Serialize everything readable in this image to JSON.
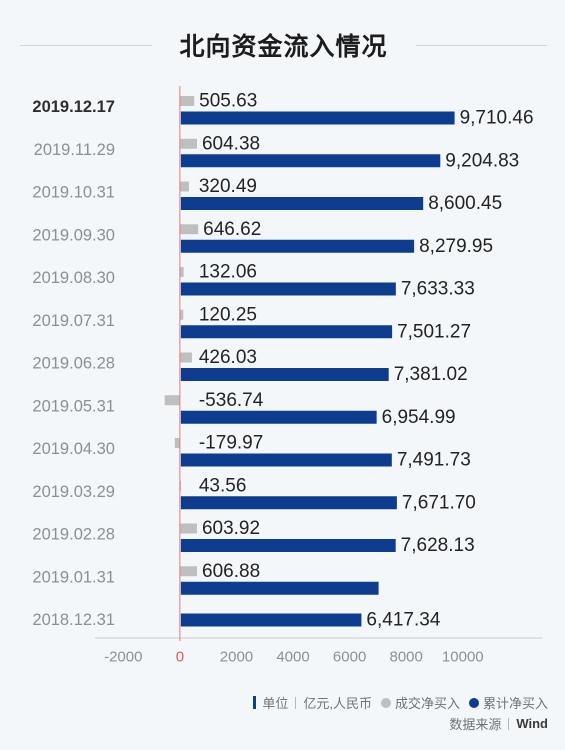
{
  "legend": {
    "unit_label": "单位"
  },
  "source": {
    "label": "数据来源",
    "value": "Wind"
  },
  "colors": {
    "background": "#f4f7fa",
    "zero_line": "#e37b7b"
  },
  "chart_data": {
    "type": "bar",
    "orientation": "horizontal",
    "title": "北向资金流入情况",
    "unit": "亿元,人民币",
    "categories": [
      "2019.12.17",
      "2019.11.29",
      "2019.10.31",
      "2019.09.30",
      "2019.08.30",
      "2019.07.31",
      "2019.06.28",
      "2019.05.31",
      "2019.04.30",
      "2019.03.29",
      "2019.02.28",
      "2019.01.31",
      "2018.12.31"
    ],
    "series": [
      {
        "name": "成交净买入",
        "color": "#bfbfbf",
        "values": [
          505.63,
          604.38,
          320.49,
          646.62,
          132.06,
          120.25,
          426.03,
          -536.74,
          -179.97,
          43.56,
          603.92,
          606.88,
          null
        ],
        "labels": [
          "505.63",
          "604.38",
          "320.49",
          "646.62",
          "132.06",
          "120.25",
          "426.03",
          "-536.74",
          "-179.97",
          "43.56",
          "603.92",
          "606.88",
          null
        ]
      },
      {
        "name": "累计净买入",
        "color": "#0e3c8e",
        "values": [
          9710.46,
          9204.83,
          8600.45,
          8279.95,
          7633.33,
          7501.27,
          7381.02,
          6954.99,
          7491.73,
          7671.7,
          7628.13,
          7024.22,
          6417.34
        ],
        "labels": [
          "9,710.46",
          "9,204.83",
          "8,600.45",
          "8,279.95",
          "7,633.33",
          "7,501.27",
          "7,381.02",
          "6,954.99",
          "7,491.73",
          "7,671.70",
          "7,628.13",
          null,
          "6,417.34"
        ]
      }
    ],
    "xlim": [
      -3000,
      12800
    ],
    "xticks": [
      -2000,
      0,
      2000,
      4000,
      6000,
      8000,
      10000
    ],
    "grid": false,
    "legend_position": "bottom-right"
  }
}
